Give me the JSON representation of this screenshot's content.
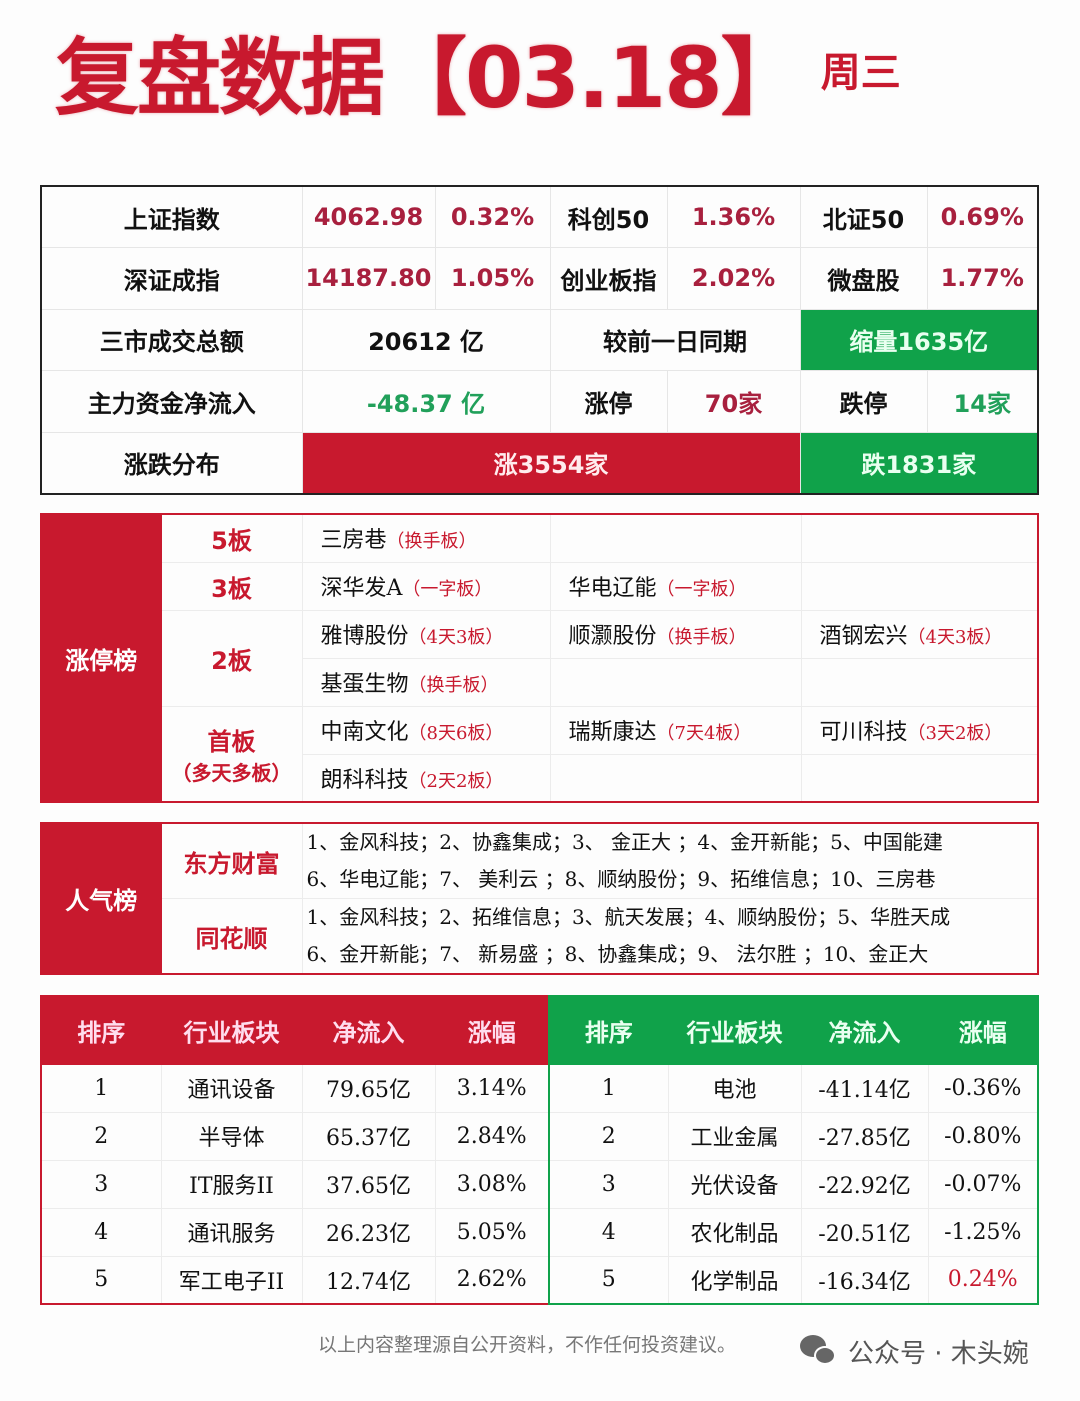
{
  "title": {
    "main": "复盘数据【03.18】",
    "weekday": "周三"
  },
  "summary": {
    "row1": [
      {
        "label": "上证指数",
        "value": "4062.98",
        "pct": "0.32%"
      },
      {
        "label": "科创50",
        "pct": "1.36%"
      },
      {
        "label": "北证50",
        "pct": "0.69%"
      }
    ],
    "row2": [
      {
        "label": "深证成指",
        "value": "14187.80",
        "pct": "1.05%"
      },
      {
        "label": "创业板指",
        "pct": "2.02%"
      },
      {
        "label": "微盘股",
        "pct": "1.77%"
      }
    ],
    "turnover": {
      "label": "三市成交总额",
      "value": "20612 亿",
      "compare_label": "较前一日同期",
      "compare_value": "缩量1635亿"
    },
    "flow": {
      "label": "主力资金净流入",
      "value": "-48.37 亿",
      "limit_up_label": "涨停",
      "limit_up": "70家",
      "limit_down_label": "跌停",
      "limit_down": "14家"
    },
    "breadth": {
      "label": "涨跌分布",
      "up": "涨3554家",
      "down": "跌1831家"
    },
    "colors": {
      "red": "#c8192e",
      "green": "#10a24a"
    }
  },
  "limit_up_board": {
    "title": "涨停榜",
    "levels": [
      {
        "level": "5板",
        "stocks": [
          {
            "name": "三房巷",
            "tag": "（换手板）"
          }
        ]
      },
      {
        "level": "3板",
        "stocks": [
          {
            "name": "深华发A",
            "tag": "（一字板）"
          },
          {
            "name": "华电辽能",
            "tag": "（一字板）"
          }
        ]
      },
      {
        "level": "2板",
        "stocks": [
          {
            "name": "雅博股份",
            "tag": "（4天3板）"
          },
          {
            "name": "顺灏股份",
            "tag": "（换手板）"
          },
          {
            "name": "酒钢宏兴",
            "tag": "（4天3板）"
          },
          {
            "name": "基蛋生物",
            "tag": "（换手板）"
          }
        ]
      },
      {
        "level": "首板",
        "sub": "（多天多板）",
        "stocks": [
          {
            "name": "中南文化",
            "tag": "（8天6板）"
          },
          {
            "name": "瑞斯康达",
            "tag": "（7天4板）"
          },
          {
            "name": "可川科技",
            "tag": "（3天2板）"
          },
          {
            "name": "朗科科技",
            "tag": "（2天2板）"
          }
        ]
      }
    ]
  },
  "popularity": {
    "title": "人气榜",
    "sources": [
      {
        "name": "东方财富",
        "lines": [
          "1、金风科技；2、协鑫集成；3、 金正大 ；4、金开新能；5、中国能建",
          "6、华电辽能；7、 美利云 ；8、顺纳股份；9、拓维信息；10、三房巷"
        ]
      },
      {
        "name": "同花顺",
        "lines": [
          "1、金风科技；2、拓维信息；3、航天发展；4、顺纳股份；5、华胜天成",
          "6、金开新能；7、 新易盛 ；8、协鑫集成；9、 法尔胜 ；10、金正大"
        ]
      }
    ]
  },
  "sectors": {
    "headers": [
      "排序",
      "行业板块",
      "净流入",
      "涨幅"
    ],
    "inflow": [
      [
        "1",
        "通讯设备",
        "79.65亿",
        "3.14%"
      ],
      [
        "2",
        "半导体",
        "65.37亿",
        "2.84%"
      ],
      [
        "3",
        "IT服务II",
        "37.65亿",
        "3.08%"
      ],
      [
        "4",
        "通讯服务",
        "26.23亿",
        "5.05%"
      ],
      [
        "5",
        "军工电子II",
        "12.74亿",
        "2.62%"
      ]
    ],
    "outflow": [
      [
        "1",
        "电池",
        "-41.14亿",
        "-0.36%"
      ],
      [
        "2",
        "工业金属",
        "-27.85亿",
        "-0.80%"
      ],
      [
        "3",
        "光伏设备",
        "-22.92亿",
        "-0.07%"
      ],
      [
        "4",
        "农化制品",
        "-20.51亿",
        "-1.25%"
      ],
      [
        "5",
        "化学制品",
        "-16.34亿",
        "0.24%"
      ]
    ]
  },
  "footer": {
    "disclaimer": "以上内容整理源自公开资料，不作任何投资建议。",
    "brand": "公众号 · 木头婉"
  }
}
